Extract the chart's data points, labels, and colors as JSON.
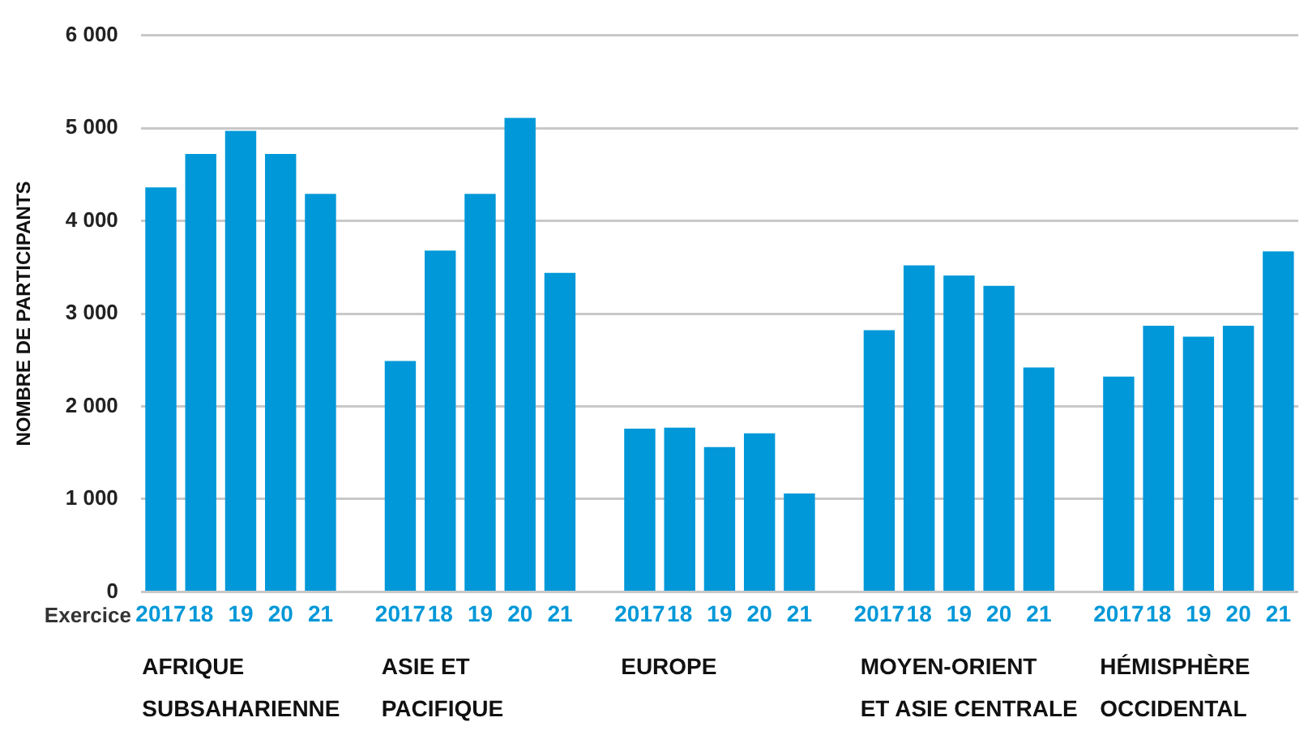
{
  "chart_data": {
    "type": "bar",
    "ylabel": "NOMBRE DE PARTICIPANTS",
    "xlabel": "Exercice",
    "categories": [
      "2017",
      "18",
      "19",
      "20",
      "21",
      null,
      "2017",
      "18",
      "19",
      "20",
      "21",
      null,
      "2017",
      "18",
      "19",
      "20",
      "21",
      null,
      "2017",
      "18",
      "19",
      "20",
      "21",
      null,
      "2017",
      "18",
      "19",
      "20",
      "21"
    ],
    "values": [
      4360,
      4720,
      4970,
      4720,
      4290,
      null,
      2490,
      3680,
      4290,
      5110,
      3440,
      null,
      1760,
      1770,
      1560,
      1710,
      1060,
      null,
      2820,
      3520,
      3410,
      3300,
      2420,
      null,
      2320,
      2870,
      2750,
      2870,
      3670
    ],
    "color": "#0098d8",
    "ylim": [
      0,
      6000
    ],
    "yticks": [
      {
        "value": 0,
        "label": "0"
      },
      {
        "value": 1000,
        "label": "1 000"
      },
      {
        "value": 2000,
        "label": "2 000"
      },
      {
        "value": 3000,
        "label": "3 000"
      },
      {
        "value": 4000,
        "label": "4 000"
      },
      {
        "value": 5000,
        "label": "5 000"
      },
      {
        "value": 6000,
        "label": "6 000"
      }
    ],
    "grid": "y",
    "legend": false,
    "annotations": [
      "AFRIQUE\nSUBSAHARIENNE",
      "ASIE ET\nPACIFIQUE",
      "EUROPE",
      "MOYEN-ORIENT\nET ASIE CENTRALE",
      "HÉMISPHÈRE\nOCCIDENTAL"
    ]
  }
}
